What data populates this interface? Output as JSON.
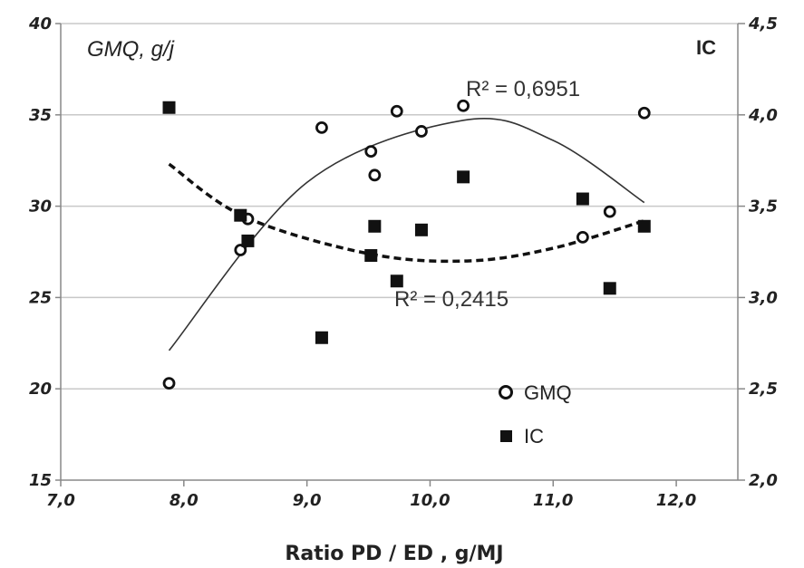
{
  "chart_data": {
    "type": "scatter",
    "x_axis": {
      "label": "Ratio PD / ED , g/MJ",
      "range": [
        7.0,
        12.5
      ],
      "ticks": [
        "7,0",
        "8,0",
        "9,0",
        "10,0",
        "11,0",
        "12,0"
      ]
    },
    "y_axis_left": {
      "label": "GMQ, g/j",
      "range": [
        15,
        40
      ],
      "ticks": [
        "15",
        "20",
        "25",
        "30",
        "35",
        "40"
      ]
    },
    "y_axis_right": {
      "label": "IC",
      "range": [
        2.0,
        4.5
      ],
      "ticks": [
        "2,0",
        "2,5",
        "3,0",
        "3,5",
        "4,0",
        "4,5"
      ]
    },
    "grid": "horizontal",
    "series": [
      {
        "name": "GMQ",
        "axis": "left",
        "marker": "open-circle",
        "points": [
          [
            7.88,
            20.3
          ],
          [
            8.46,
            27.6
          ],
          [
            8.52,
            29.3
          ],
          [
            9.12,
            34.3
          ],
          [
            9.52,
            33.0
          ],
          [
            9.55,
            31.7
          ],
          [
            9.73,
            35.2
          ],
          [
            9.93,
            34.1
          ],
          [
            10.27,
            35.5
          ],
          [
            11.24,
            28.3
          ],
          [
            11.46,
            29.7
          ],
          [
            11.74,
            35.1
          ]
        ],
        "r2_label": "R² = 0,6951",
        "trend": {
          "type": "quadratic",
          "points": [
            [
              7.88,
              22.1
            ],
            [
              9.0,
              31.3
            ],
            [
              10.27,
              34.7
            ],
            [
              11.0,
              33.6
            ],
            [
              11.74,
              30.2
            ]
          ]
        }
      },
      {
        "name": "IC",
        "axis": "right",
        "marker": "filled-square",
        "points": [
          [
            7.88,
            4.04
          ],
          [
            8.46,
            3.45
          ],
          [
            8.52,
            3.31
          ],
          [
            9.12,
            2.78
          ],
          [
            9.52,
            3.23
          ],
          [
            9.55,
            3.39
          ],
          [
            9.73,
            3.09
          ],
          [
            9.93,
            3.37
          ],
          [
            10.27,
            3.66
          ],
          [
            11.24,
            3.54
          ],
          [
            11.46,
            3.05
          ],
          [
            11.74,
            3.39
          ]
        ],
        "r2_label": "R² = 0,2415",
        "trend": {
          "type": "quadratic",
          "points": [
            [
              7.88,
              3.73
            ],
            [
              8.5,
              3.44
            ],
            [
              9.5,
              3.24
            ],
            [
              10.3,
              3.2
            ],
            [
              11.0,
              3.27
            ],
            [
              11.74,
              3.42
            ]
          ]
        }
      }
    ],
    "legend": {
      "placement": "bottom-center-right",
      "items": [
        "GMQ",
        "IC"
      ]
    }
  }
}
